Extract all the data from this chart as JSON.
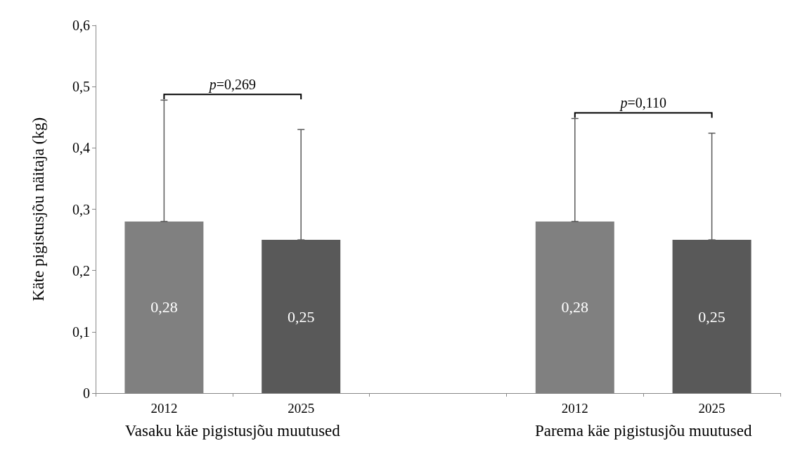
{
  "chart_data": {
    "type": "bar",
    "ylabel": "Käte pigistusjõu näitaja (kg)",
    "categories": [
      "2012",
      "2025",
      null,
      "2012",
      "2025"
    ],
    "values": [
      0.28,
      0.25,
      null,
      0.28,
      0.25
    ],
    "colors": [
      "#808080",
      "#595959",
      "#808080",
      "#808080",
      "#595959"
    ],
    "errors": [
      [
        0.28,
        0.478
      ],
      [
        0.25,
        0.43
      ],
      null,
      [
        0.28,
        0.448
      ],
      [
        0.25,
        0.424
      ]
    ],
    "value_labels": [
      "0,28",
      "0,25",
      null,
      "0,28",
      "0,25"
    ],
    "ylim": [
      0,
      0.6
    ],
    "yticks": [
      0,
      {
        "value": 0.1,
        "label": "0,1"
      },
      {
        "value": 0.2,
        "label": "0,2"
      },
      {
        "value": 0.3,
        "label": "0,3"
      },
      {
        "value": 0.4,
        "label": "0,4"
      },
      {
        "value": 0.5,
        "label": "0,5"
      },
      {
        "value": 0.6,
        "label": "0,6"
      }
    ],
    "grid": false,
    "annotations": [
      "p=0,269",
      "p=0,110",
      "Vasaku käe pigistusjõu muutused",
      "Parema käe pigistusjõu muutused"
    ]
  }
}
